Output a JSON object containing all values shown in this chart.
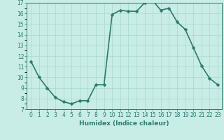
{
  "x": [
    0,
    1,
    2,
    3,
    4,
    5,
    6,
    7,
    8,
    9,
    10,
    11,
    12,
    13,
    14,
    15,
    16,
    17,
    18,
    19,
    20,
    21,
    22,
    23
  ],
  "y": [
    11.5,
    10.0,
    9.0,
    8.1,
    7.7,
    7.5,
    7.8,
    7.8,
    9.3,
    9.3,
    15.9,
    16.3,
    16.2,
    16.2,
    17.0,
    17.2,
    16.3,
    16.5,
    15.2,
    14.5,
    12.8,
    11.1,
    9.9,
    9.3
  ],
  "xlabel": "Humidex (Indice chaleur)",
  "ylim": [
    7,
    17
  ],
  "xlim": [
    -0.5,
    23.5
  ],
  "yticks": [
    7,
    8,
    9,
    10,
    11,
    12,
    13,
    14,
    15,
    16,
    17
  ],
  "xticks": [
    0,
    1,
    2,
    3,
    4,
    5,
    6,
    7,
    8,
    9,
    10,
    11,
    12,
    13,
    14,
    15,
    16,
    17,
    18,
    19,
    20,
    21,
    22,
    23
  ],
  "line_color": "#2d7a6e",
  "bg_color": "#c8ece6",
  "grid_color": "#a8d8cc",
  "marker_size": 2.5,
  "line_width": 1.2,
  "xlabel_fontsize": 6.5,
  "tick_fontsize": 5.5
}
